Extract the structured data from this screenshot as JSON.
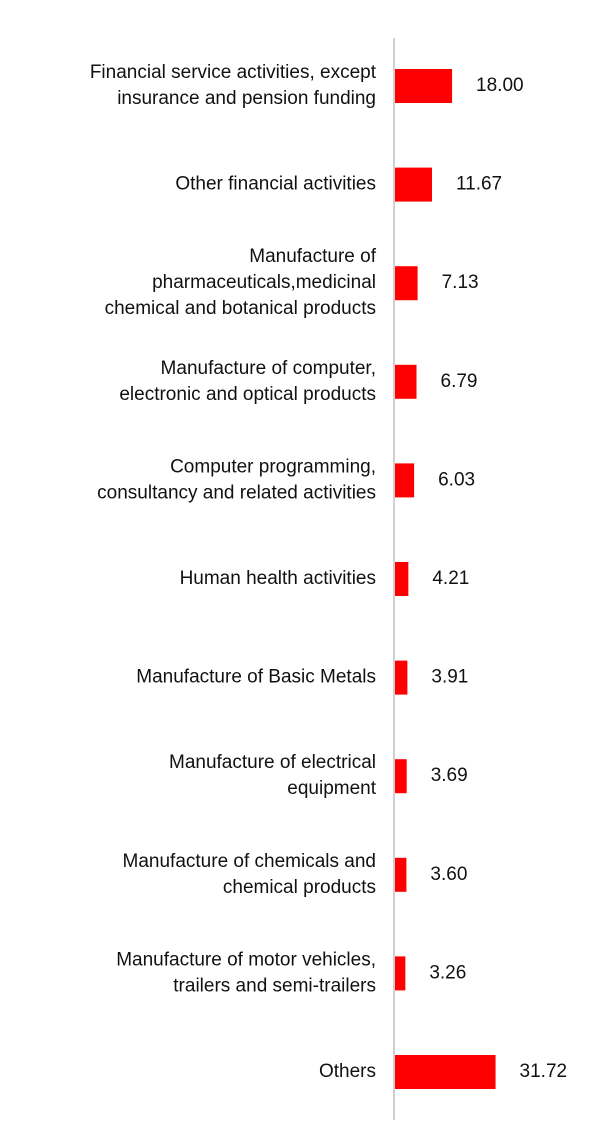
{
  "chart_data": {
    "type": "bar",
    "orientation": "horizontal",
    "title": "",
    "xlabel": "",
    "ylabel": "",
    "grid": false,
    "legend": "none",
    "categories": [
      [
        "Financial service activities, except",
        "insurance and pension funding"
      ],
      [
        "Other financial activities"
      ],
      [
        "Manufacture of",
        "pharmaceuticals,medicinal",
        "chemical and botanical products"
      ],
      [
        "Manufacture of computer,",
        "electronic and optical products"
      ],
      [
        "Computer programming,",
        "consultancy and related activities"
      ],
      [
        "Human health activities"
      ],
      [
        "Manufacture of Basic Metals"
      ],
      [
        "Manufacture of electrical",
        "equipment"
      ],
      [
        "Manufacture of chemicals and",
        "chemical products"
      ],
      [
        "Manufacture of motor vehicles,",
        "trailers and semi-trailers"
      ],
      [
        "Others"
      ]
    ],
    "values": [
      18.0,
      11.67,
      7.13,
      6.79,
      6.03,
      4.21,
      3.91,
      3.69,
      3.6,
      3.26,
      31.72
    ],
    "value_labels": [
      "18.00",
      "11.67",
      "7.13",
      "6.79",
      "6.03",
      "4.21",
      "3.91",
      "3.69",
      "3.60",
      "3.26",
      "31.72"
    ],
    "xlim": [
      0,
      100
    ],
    "bar_color": "#ff0000",
    "axis_color": "#d0d0d0"
  }
}
